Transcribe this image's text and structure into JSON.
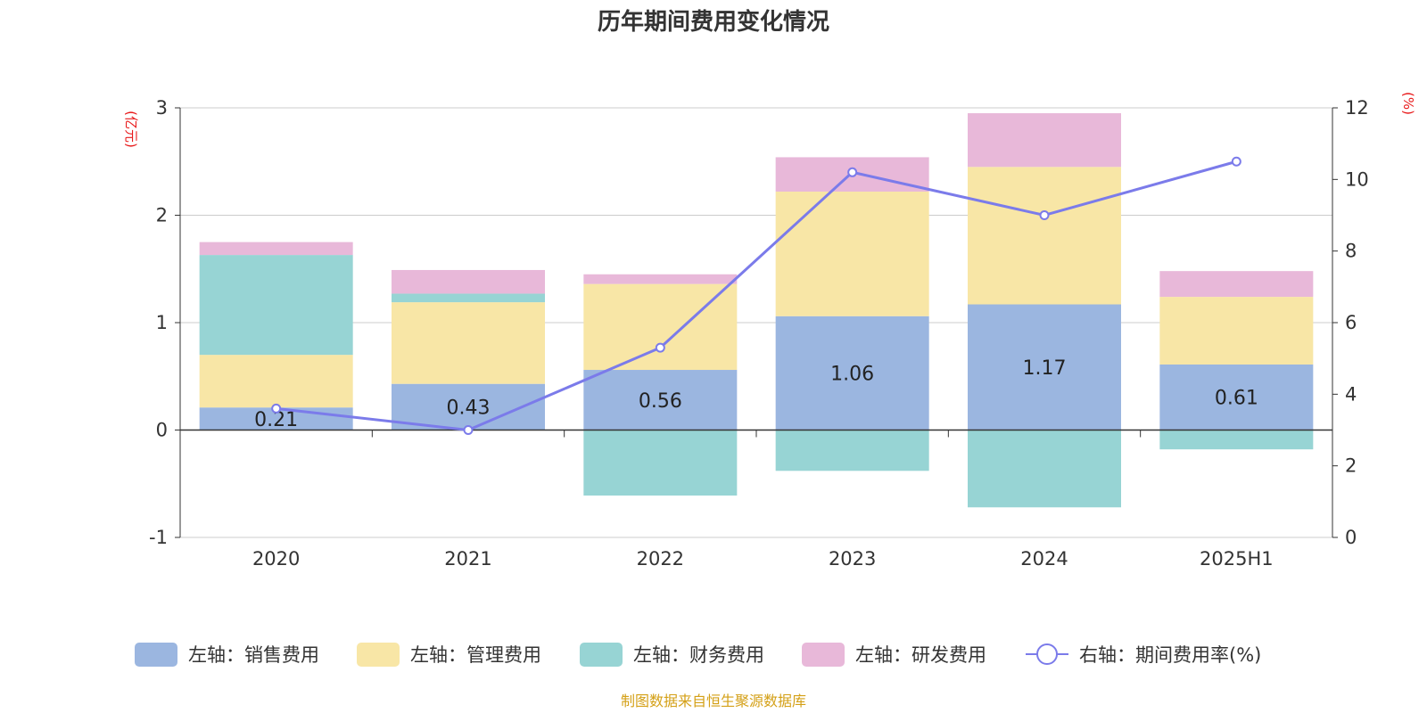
{
  "title": "历年期间费用变化情况",
  "source": "制图数据来自恒生聚源数据库",
  "colors": {
    "sales": "#9bb6e0",
    "admin": "#f8e6a6",
    "finance": "#97d4d4",
    "rd": "#e8b8d9",
    "rate": "#7b7bea",
    "unit": "#e8191a",
    "source": "#d4a017"
  },
  "chart_data": {
    "type": "bar",
    "stacked": true,
    "categories": [
      "2020",
      "2021",
      "2022",
      "2023",
      "2024",
      "2025H1"
    ],
    "left_axis": {
      "unit": "(亿元)",
      "ylim": [
        -1,
        3
      ],
      "ticks": [
        "-1",
        "0",
        "1",
        "2",
        "3"
      ]
    },
    "right_axis": {
      "unit": "(%)",
      "ylim": [
        0,
        12
      ],
      "ticks": [
        "0",
        "2",
        "4",
        "6",
        "8",
        "10",
        "12"
      ]
    },
    "series": [
      {
        "key": "sales",
        "name": "左轴：销售费用",
        "axis": "left",
        "values": [
          0.21,
          0.43,
          0.56,
          1.06,
          1.17,
          0.61
        ],
        "labels": [
          "0.21",
          "0.43",
          "0.56",
          "1.06",
          "1.17",
          "0.61"
        ]
      },
      {
        "key": "admin",
        "name": "左轴：管理费用",
        "axis": "left",
        "values": [
          0.49,
          0.76,
          0.8,
          1.16,
          1.28,
          0.63
        ]
      },
      {
        "key": "finance",
        "name": "左轴：财务费用",
        "axis": "left",
        "values": [
          0.93,
          0.08,
          -0.61,
          -0.38,
          -0.72,
          -0.18
        ]
      },
      {
        "key": "rd",
        "name": "左轴：研发费用",
        "axis": "left",
        "values": [
          0.12,
          0.22,
          0.09,
          0.32,
          0.5,
          0.24
        ]
      },
      {
        "key": "rate",
        "name": "右轴：期间费用率(%)",
        "axis": "right",
        "type": "line",
        "values": [
          3.6,
          3.0,
          5.3,
          10.2,
          9.0,
          10.5
        ]
      }
    ],
    "grid": true,
    "legend_position": "bottom"
  }
}
